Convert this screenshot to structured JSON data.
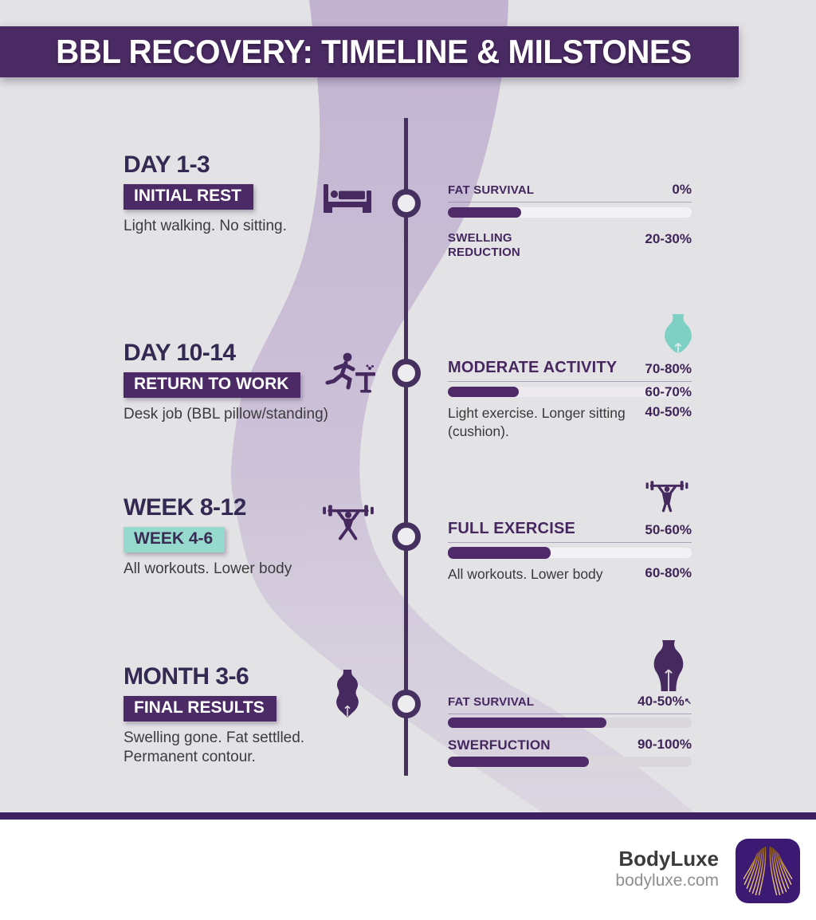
{
  "header": {
    "title": "BBL RECOVERY: TIMELINE & MILSTONES"
  },
  "colors": {
    "banner_purple": "#4a2a63",
    "badge_purple": "#4b2a66",
    "badge_teal": "#96dacd",
    "bar_fill_purple": "#4e2b68",
    "icon_teal": "#7fd0c4",
    "background_gray": "#e3e2e4",
    "ribbon_lavender": "#c3b5d2"
  },
  "milestones": [
    {
      "period": "DAY 1-3",
      "badge": "INITIAL REST",
      "description": "Light walking. No sitting.",
      "icon": "bed-icon",
      "stats": {
        "label1": "FAT SURVIVAL",
        "value1": "0%",
        "bar1_percent": 30,
        "label2": "SWELLING REDUCTION",
        "value2": "20-30%"
      }
    },
    {
      "period": "DAY 10-14",
      "badge": "RETURN TO WORK",
      "description": "Desk job (BBL pillow/standing)",
      "icon": "running-to-desk-icon",
      "stats": {
        "icon": "hips-silhouette-teal-icon",
        "heading": "MODERATE ACTIVITY",
        "value1": "70-80%",
        "bar_percent": 29,
        "value2": "60-70%",
        "description": "Light exercise. Longer sitting (cushion).",
        "value3": "40-50%"
      }
    },
    {
      "period": "WEEK 8-12",
      "badge": "WEEK 4-6",
      "description": "All workouts. Lower body",
      "icon": "weightlifter-icon",
      "stats": {
        "icon": "weightlifter-icon",
        "heading": "FULL EXERCISE",
        "value1": "50-60%",
        "bar_percent": 42,
        "description": "All workouts. Lower body",
        "value2": "60-80%"
      }
    },
    {
      "period": "MONTH 3-6",
      "badge": "FINAL RESULTS",
      "description": "Swelling gone. Fat settlled. Permanent contour.",
      "icon": "female-body-icon",
      "stats": {
        "icon": "hips-silhouette-purple-icon",
        "label1": "FAT SURVIVAL",
        "value1": "40-50%",
        "value1_mark": "↖",
        "bar1_percent": 65,
        "label2": "SWERFUCTION",
        "value2": "90-100%",
        "bar2_percent": 58
      }
    }
  ],
  "footer": {
    "brand": "BodyLuxe",
    "website": "bodyluxe.com",
    "logo": "golden-wings-logo"
  }
}
